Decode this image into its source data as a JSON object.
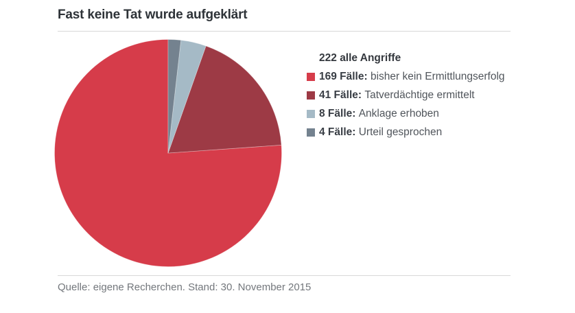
{
  "title": "Fast keine Tat wurde aufgeklärt",
  "source": "Quelle: eigene Recherchen. Stand: 30. November 2015",
  "chart_data": {
    "type": "pie",
    "title": "Fast keine Tat wurde aufgeklärt",
    "total": 222,
    "legend_header_value": "222",
    "legend_header_label": "alle Angriffe",
    "legend_position": "right",
    "start_angle_deg": 0,
    "direction": "counterclockwise",
    "slices": [
      {
        "value": 169,
        "label": "169 Fälle:",
        "description": "bisher kein Ermittlungserfolg",
        "color": "#d63c4a"
      },
      {
        "value": 41,
        "label": "41 Fälle:",
        "description": "Tatverdächtige ermittelt",
        "color": "#9d3a45"
      },
      {
        "value": 8,
        "label": "8 Fälle:",
        "description": "Anklage erhoben",
        "color": "#a5bac6"
      },
      {
        "value": 4,
        "label": "4 Fälle:",
        "description": "Urteil gesprochen",
        "color": "#74828f"
      }
    ]
  }
}
